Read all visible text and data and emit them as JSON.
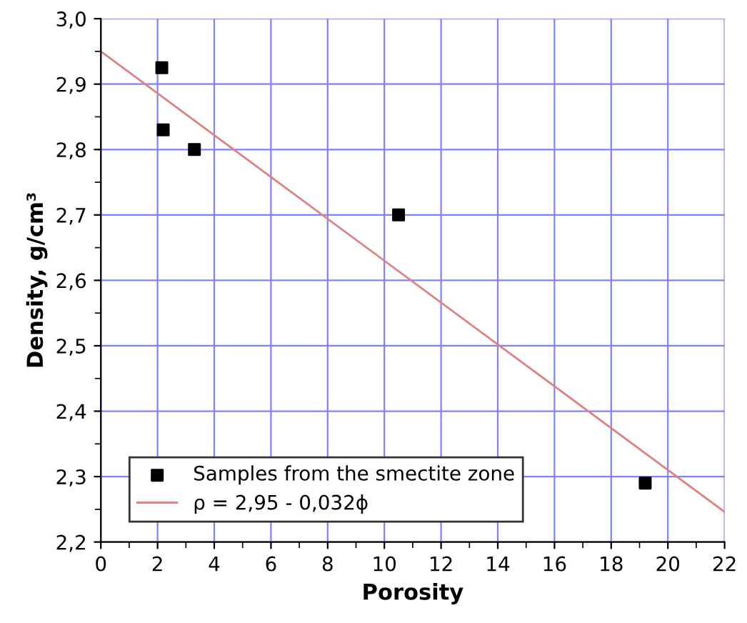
{
  "chart_data": {
    "type": "scatter",
    "xlabel": "Porosity",
    "ylabel": "Density, g/cm³",
    "series": [
      {
        "name": "Samples from the smectite zone",
        "color": "#000000",
        "marker": "square",
        "x": [
          2.15,
          2.2,
          3.3,
          10.5,
          19.2
        ],
        "values": [
          2.925,
          2.83,
          2.8,
          2.7,
          2.29
        ]
      },
      {
        "name": "ρ = 2,95 - 0,032ϕ",
        "type": "line",
        "color": "#e08080",
        "line_style": "solid",
        "x": [
          0,
          22
        ],
        "values": [
          2.95,
          2.246
        ]
      }
    ],
    "xlim": [
      0,
      22
    ],
    "ylim": [
      2.2,
      3.0
    ],
    "xticks": [
      0,
      2,
      4,
      6,
      8,
      10,
      12,
      14,
      16,
      18,
      20,
      22
    ],
    "yticks": [
      {
        "value": 2.2,
        "label": "2,2"
      },
      {
        "value": 2.3,
        "label": "2,3"
      },
      {
        "value": 2.4,
        "label": "2,4"
      },
      {
        "value": 2.5,
        "label": "2,5"
      },
      {
        "value": 2.6,
        "label": "2,6"
      },
      {
        "value": 2.7,
        "label": "2,7"
      },
      {
        "value": 2.8,
        "label": "2,8"
      },
      {
        "value": 2.9,
        "label": "2,9"
      },
      {
        "value": 3.0,
        "label": "3,0"
      }
    ],
    "grid": true,
    "legend": "bottom left"
  }
}
